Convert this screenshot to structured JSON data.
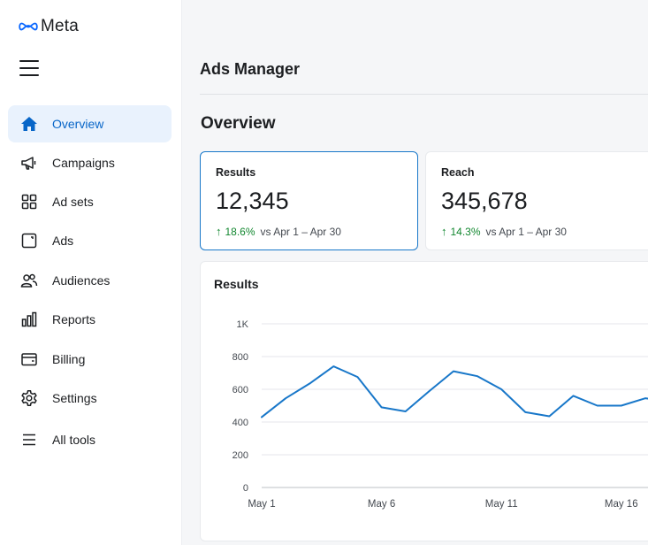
{
  "brand": {
    "name": "Meta",
    "color": "#0866ff"
  },
  "sidebar": {
    "items": [
      {
        "label": "Overview",
        "icon": "home-icon",
        "active": true
      },
      {
        "label": "Campaigns",
        "icon": "megaphone-icon",
        "active": false
      },
      {
        "label": "Ad sets",
        "icon": "grid-icon",
        "active": false
      },
      {
        "label": "Ads",
        "icon": "ad-icon",
        "active": false
      },
      {
        "label": "Audiences",
        "icon": "people-icon",
        "active": false
      },
      {
        "label": "Reports",
        "icon": "bar-chart-icon",
        "active": false
      },
      {
        "label": "Billing",
        "icon": "wallet-icon",
        "active": false
      },
      {
        "label": "Settings",
        "icon": "gear-icon",
        "active": false
      },
      {
        "label": "All tools",
        "icon": "menu-lines-icon",
        "active": false
      }
    ]
  },
  "header": {
    "title": "Ads Manager"
  },
  "overview": {
    "title": "Overview",
    "cards": [
      {
        "label": "Results",
        "value": "12,345",
        "delta": "18.6%",
        "compare": "vs Apr 1 – Apr 30",
        "selected": true
      },
      {
        "label": "Reach",
        "value": "345,678",
        "delta": "14.3%",
        "compare": "vs Apr 1 – Apr 30",
        "selected": false
      }
    ]
  },
  "chart": {
    "title": "Results",
    "line_color": "#1877c9"
  },
  "chart_data": {
    "type": "line",
    "title": "Results",
    "x": [
      1,
      2,
      3,
      4,
      5,
      6,
      7,
      8,
      9,
      10,
      11,
      12,
      13,
      14,
      15,
      16,
      17,
      18
    ],
    "x_tick_labels": [
      {
        "x": 1,
        "label": "May 1"
      },
      {
        "x": 6,
        "label": "May 6"
      },
      {
        "x": 11,
        "label": "May 11"
      },
      {
        "x": 16,
        "label": "May 16"
      }
    ],
    "y_ticks": [
      0,
      200,
      400,
      600,
      800,
      1000
    ],
    "y_tick_labels": [
      "0",
      "200",
      "400",
      "600",
      "800",
      "1K"
    ],
    "ylim": [
      0,
      1000
    ],
    "series": [
      {
        "values": [
          430,
          545,
          635,
          740,
          675,
          490,
          465,
          590,
          710,
          680,
          600,
          460,
          435,
          560,
          500,
          500,
          545,
          525
        ]
      }
    ],
    "grid": true
  }
}
